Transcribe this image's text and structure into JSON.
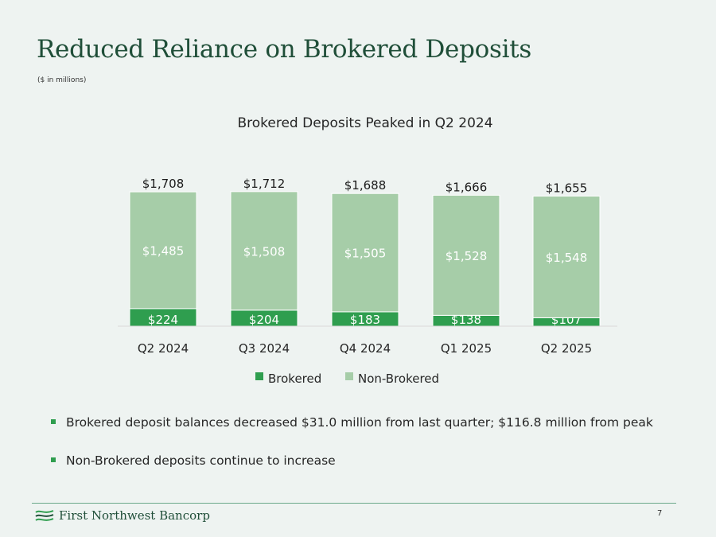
{
  "slide": {
    "title": "Reduced Reliance on Brokered Deposits",
    "subtitle": "($ in millions)",
    "page_number": "7"
  },
  "bullets": [
    "Brokered deposit balances decreased $31.0 million from last quarter; $116.8 million from peak",
    "Non-Brokered deposits continue to increase"
  ],
  "footer": {
    "logo_text": "First Northwest Bancorp"
  },
  "colors": {
    "brokered": "#2f9e4f",
    "non_brokered": "#a6cda8",
    "title": "#1f4e38"
  },
  "chart_data": {
    "type": "bar",
    "stacked": true,
    "title": "Brokered Deposits Peaked in Q2 2024",
    "categories": [
      "Q2 2024",
      "Q3 2024",
      "Q4 2024",
      "Q1 2025",
      "Q2 2025"
    ],
    "series": [
      {
        "name": "Brokered",
        "values": [
          224,
          204,
          183,
          138,
          107
        ],
        "labels": [
          "$224",
          "$204",
          "$183",
          "$138",
          "$107"
        ]
      },
      {
        "name": "Non-Brokered",
        "values": [
          1485,
          1508,
          1505,
          1528,
          1548
        ],
        "labels": [
          "$1,485",
          "$1,508",
          "$1,505",
          "$1,528",
          "$1,548"
        ]
      }
    ],
    "totals": [
      1708,
      1712,
      1688,
      1666,
      1655
    ],
    "total_labels": [
      "$1,708",
      "$1,712",
      "$1,688",
      "$1,666",
      "$1,655"
    ],
    "legend": "bottom",
    "grid": false
  }
}
